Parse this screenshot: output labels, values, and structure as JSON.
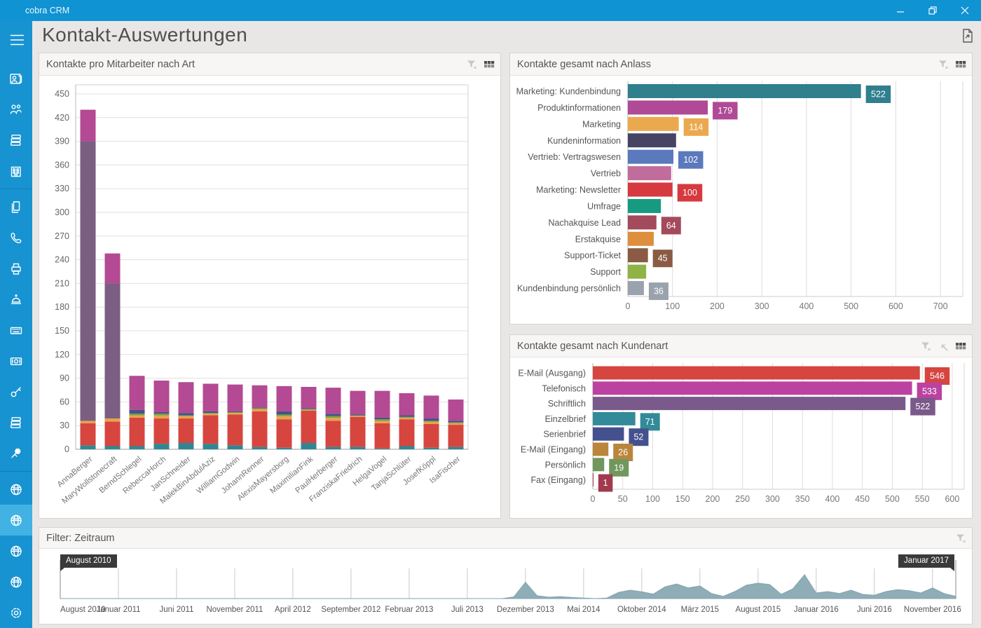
{
  "window": {
    "title": "cobra CRM"
  },
  "page": {
    "title": "Kontakt-Auswertungen"
  },
  "sidebar": {
    "items": [
      {
        "icon": "menu-icon"
      },
      {
        "icon": "contact-card-icon"
      },
      {
        "icon": "people-icon"
      },
      {
        "icon": "card-stack-icon"
      },
      {
        "icon": "building-icon"
      },
      {
        "icon": "divider"
      },
      {
        "icon": "documents-icon"
      },
      {
        "icon": "phone-icon"
      },
      {
        "icon": "printer-icon"
      },
      {
        "icon": "bell-icon"
      },
      {
        "icon": "keyboard-icon"
      },
      {
        "icon": "money-icon"
      },
      {
        "icon": "key-icon"
      },
      {
        "icon": "card-stack-icon"
      },
      {
        "icon": "pin-icon"
      },
      {
        "icon": "divider"
      },
      {
        "icon": "globe-icon"
      },
      {
        "icon": "globe-icon",
        "active": true
      },
      {
        "icon": "globe-icon"
      },
      {
        "icon": "globe-icon"
      },
      {
        "icon": "gear-icon"
      }
    ]
  },
  "panels": {
    "mitarbeiter": {
      "title": "Kontakte pro Mitarbeiter nach Art",
      "icons": [
        "filter-x-icon",
        "grid-icon"
      ]
    },
    "anlass": {
      "title": "Kontakte gesamt nach Anlass",
      "icons": [
        "filter-x-icon",
        "grid-icon"
      ]
    },
    "kundenart": {
      "title": "Kontakte gesamt nach Kundenart",
      "icons": [
        "filter-x-icon",
        "drill-up-icon",
        "grid-icon"
      ]
    },
    "zeitraum": {
      "title": "Filter: Zeitraum",
      "icons": [
        "filter-x-icon"
      ],
      "range_start": "August 2010",
      "range_end": "Januar 2017"
    }
  },
  "chart_data": [
    {
      "id": "mitarbeiter",
      "type": "bar",
      "stacked": true,
      "title": "Kontakte pro Mitarbeiter nach Art",
      "categories": [
        "AnnaBerger",
        "MaryWollstonecraft",
        "BerndSchlegel",
        "RebeccaHorch",
        "JanSchneider",
        "MalekBinAbdulAziz",
        "WilliamGodwin",
        "JohannRenner",
        "AlexisMayersborg",
        "MaximilianFink",
        "PaulHerberger",
        "FranziskaFriedrich",
        "HelgaVogel",
        "TanjaSchlüter",
        "JosefKöppl",
        "IsaFischer"
      ],
      "series": [
        {
          "color": "#2f8793",
          "values": [
            5,
            4,
            4,
            7,
            8,
            7,
            5,
            3,
            2,
            8,
            3,
            3,
            1,
            4,
            2,
            3
          ]
        },
        {
          "color": "#d6463f",
          "values": [
            28,
            31,
            36,
            32,
            31,
            36,
            39,
            45,
            36,
            41,
            33,
            38,
            32,
            34,
            30,
            28
          ]
        },
        {
          "color": "#e9a24b",
          "values": [
            3,
            4,
            3,
            4,
            3,
            2,
            2,
            3,
            4,
            1,
            4,
            1,
            3,
            2,
            3,
            2
          ]
        },
        {
          "color": "#76a03f",
          "values": [
            0,
            0,
            2,
            2,
            1,
            1,
            1,
            1,
            2,
            1,
            2,
            1,
            2,
            1,
            1,
            1
          ]
        },
        {
          "color": "#465287",
          "values": [
            0,
            0,
            5,
            2,
            3,
            2,
            1,
            1,
            4,
            1,
            3,
            1,
            2,
            2,
            3,
            2
          ]
        },
        {
          "color": "#7b5e81",
          "values": [
            354,
            171,
            0,
            0,
            0,
            0,
            0,
            0,
            0,
            0,
            0,
            0,
            0,
            0,
            0,
            0
          ]
        },
        {
          "color": "#b44a93",
          "values": [
            40,
            38,
            43,
            40,
            39,
            35,
            34,
            28,
            32,
            27,
            33,
            30,
            34,
            28,
            29,
            27
          ]
        }
      ],
      "totals": [
        430,
        248,
        93,
        87,
        85,
        83,
        82,
        81,
        80,
        79,
        78,
        74,
        74,
        71,
        68,
        63
      ],
      "ylim": [
        0,
        461
      ],
      "ytick_step": 30,
      "ymax_tick": 450,
      "grid": true,
      "legend": "none"
    },
    {
      "id": "anlass",
      "type": "bar",
      "orientation": "horizontal",
      "title": "Kontakte gesamt nach Anlass",
      "rows": [
        {
          "label": "Marketing: Kundenbindung",
          "value": 522,
          "color": "#2f7f8d",
          "value_label_shown": true
        },
        {
          "label": "Produktinformationen",
          "value": 179,
          "color": "#b04a96",
          "value_label_shown": true
        },
        {
          "label": "Marketing",
          "value": 114,
          "color": "#eba94f",
          "value_label_shown": true
        },
        {
          "label": "Kundeninformation",
          "value": 108,
          "color": "#474364",
          "value_label_shown": false
        },
        {
          "label": "Vertrieb: Vertragswesen",
          "value": 102,
          "color": "#5b79bd",
          "value_label_shown": true
        },
        {
          "label": "Vertrieb",
          "value": 97,
          "color": "#c06d9b",
          "value_label_shown": false
        },
        {
          "label": "Marketing: Newsletter",
          "value": 100,
          "color": "#d6393f",
          "value_label_shown": true
        },
        {
          "label": "Umfrage",
          "value": 74,
          "color": "#169b80",
          "value_label_shown": false
        },
        {
          "label": "Nachakquise Lead",
          "value": 64,
          "color": "#a34a5c",
          "value_label_shown": true
        },
        {
          "label": "Erstakquise",
          "value": 58,
          "color": "#dd8f3d",
          "value_label_shown": false
        },
        {
          "label": "Support-Ticket",
          "value": 45,
          "color": "#8a5a44",
          "value_label_shown": true
        },
        {
          "label": "Support",
          "value": 41,
          "color": "#8fb344",
          "value_label_shown": false
        },
        {
          "label": "Kundenbindung persönlich",
          "value": 36,
          "color": "#9aa2ad",
          "value_label_shown": true
        }
      ],
      "xlim": [
        0,
        750
      ],
      "xticks": [
        0,
        100,
        200,
        300,
        400,
        500,
        600,
        700
      ],
      "grid": true
    },
    {
      "id": "kundenart",
      "type": "bar",
      "orientation": "horizontal",
      "title": "Kontakte gesamt nach Kundenart",
      "rows": [
        {
          "label": "E-Mail (Ausgang)",
          "value": 546,
          "color": "#d6453f",
          "value_label_shown": true
        },
        {
          "label": "Telefonisch",
          "value": 533,
          "color": "#bb42a0",
          "value_label_shown": true
        },
        {
          "label": "Schriftlich",
          "value": 522,
          "color": "#7a5a8a",
          "value_label_shown": true
        },
        {
          "label": "Einzelbrief",
          "value": 71,
          "color": "#338a99",
          "value_label_shown": true
        },
        {
          "label": "Serienbrief",
          "value": 52,
          "color": "#44518e",
          "value_label_shown": true
        },
        {
          "label": "E-Mail (Eingang)",
          "value": 26,
          "color": "#b9863c",
          "value_label_shown": true
        },
        {
          "label": "Persönlich",
          "value": 19,
          "color": "#71975c",
          "value_label_shown": true
        },
        {
          "label": "Fax (Eingang)",
          "value": 1,
          "color": "#a13a4e",
          "value_label_shown": true
        }
      ],
      "xlim": [
        0,
        620
      ],
      "xticks": [
        0,
        50,
        100,
        150,
        200,
        250,
        300,
        350,
        400,
        450,
        500,
        550,
        600
      ],
      "grid": true
    },
    {
      "id": "zeitraum",
      "type": "area",
      "title": "Filter: Zeitraum",
      "color": "#8fadb7",
      "range_start": "August 2010",
      "range_end": "Januar 2017",
      "x_tick_labels": [
        "August 2010",
        "Januar 2011",
        "Juni 2011",
        "November 2011",
        "April 2012",
        "September 2012",
        "Februar 2013",
        "Juli 2013",
        "Dezember 2013",
        "Mai 2014",
        "Oktober 2014",
        "März 2015",
        "August 2015",
        "Januar 2016",
        "Juni 2016",
        "November 2016"
      ],
      "x_tick_every_n_points": 5,
      "values": [
        0,
        0,
        0,
        0,
        0,
        0,
        0,
        0,
        0,
        0,
        0,
        0,
        0,
        0,
        0,
        0,
        0,
        0,
        0,
        0,
        0,
        0,
        0,
        0,
        0,
        0,
        0,
        0,
        0,
        0,
        0,
        0,
        0,
        0,
        0,
        0,
        0,
        0,
        0,
        6,
        58,
        10,
        5,
        7,
        4,
        2,
        0,
        2,
        22,
        30,
        24,
        16,
        42,
        52,
        38,
        45,
        18,
        8,
        25,
        48,
        55,
        50,
        15,
        35,
        85,
        20,
        25,
        18,
        30,
        15,
        12,
        25,
        32,
        28,
        20,
        38,
        18,
        8
      ]
    }
  ]
}
